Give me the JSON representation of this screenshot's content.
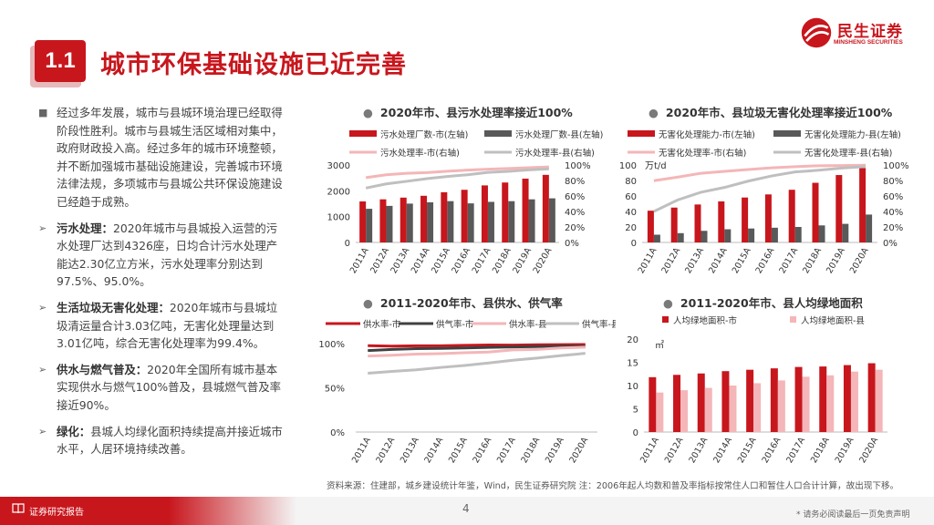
{
  "header": {
    "section_number": "1.1",
    "title": "城市环保基础设施已近完善",
    "logo_cn": "民生证券",
    "logo_en": "MINSHENG SECURITIES"
  },
  "left": {
    "p1": "经过多年发展，城市与县城环境治理已经取得阶段性胜利。城市与县城生活区域相对集中，政府财政投入高。经过多年的城市环境整顿，并不断加强城市基础设施建设，完善城市环境法律法规，多项城市与县城公共环保设施建设已经趋于成熟。",
    "p2_label": "污水处理：",
    "p2": "2020年城市与县城投入运营的污水处理厂达到4326座，日均合计污水处理产能达2.30亿立方米，污水处理率分别达到97.5%、95.0%。",
    "p3_label": "生活垃圾无害化处理：",
    "p3": "2020年城市与县城垃圾清运量合计3.03亿吨，无害化处理量达到3.01亿吨，综合无害化处理率为99.4%。",
    "p4_label": "供水与燃气普及：",
    "p4": "2020年全国所有城市基本实现供水与燃气100%普及，县城燃气普及率接近90%。",
    "p5_label": "绿化：",
    "p5": "县城人均绿化面积持续提高并接近城市水平，人居环境持续改善。"
  },
  "chart_data": [
    {
      "type": "bar",
      "title": "2020年市、县污水处理率接近100%",
      "categories": [
        "2011A",
        "2012A",
        "2013A",
        "2014A",
        "2015A",
        "2016A",
        "2017A",
        "2018A",
        "2019A",
        "2020A"
      ],
      "series": [
        {
          "name": "污水处理厂数-市(左轴)",
          "kind": "bar",
          "axis": "left",
          "color": "#c8161d",
          "values": [
            1588,
            1670,
            1736,
            1807,
            1944,
            2039,
            2209,
            2321,
            2471,
            2618
          ]
        },
        {
          "name": "污水处理厂数-县(左轴)",
          "kind": "bar",
          "axis": "left",
          "color": "#595959",
          "values": [
            1303,
            1416,
            1504,
            1555,
            1599,
            1513,
            1572,
            1598,
            1669,
            1708
          ]
        },
        {
          "name": "污水处理率-市(右轴)",
          "kind": "line",
          "axis": "right",
          "color": "#f4b6b8",
          "values": [
            0.837,
            0.873,
            0.893,
            0.902,
            0.919,
            0.934,
            0.945,
            0.955,
            0.965,
            0.975
          ]
        },
        {
          "name": "污水处理率-县(右轴)",
          "kind": "line",
          "axis": "right",
          "color": "#bfbfbf",
          "values": [
            0.702,
            0.756,
            0.789,
            0.823,
            0.852,
            0.874,
            0.904,
            0.917,
            0.936,
            0.95
          ]
        }
      ],
      "yleft": {
        "min": 0,
        "max": 3000,
        "ticks": [
          "0",
          "1000",
          "2000",
          "3000"
        ]
      },
      "yright": {
        "min": 0,
        "max": 1,
        "ticks": [
          "0%",
          "20%",
          "40%",
          "60%",
          "80%",
          "100%"
        ]
      }
    },
    {
      "type": "bar",
      "title": "2020年市、县垃圾无害化处理率接近100%",
      "categories": [
        "2011A",
        "2012A",
        "2013A",
        "2014A",
        "2015A",
        "2016A",
        "2017A",
        "2018A",
        "2019A",
        "2020A"
      ],
      "unit": "万t/d",
      "series": [
        {
          "name": "无害化处理能力-市(左轴)",
          "kind": "bar",
          "axis": "left",
          "color": "#c8161d",
          "values": [
            41,
            45,
            49,
            53,
            58,
            62,
            68,
            77,
            87,
            96
          ]
        },
        {
          "name": "无害化处理能力-县(左轴)",
          "kind": "bar",
          "axis": "left",
          "color": "#595959",
          "values": [
            10,
            12,
            15,
            17,
            18,
            19,
            20,
            22,
            24,
            36
          ]
        },
        {
          "name": "无害化处理率-市(右轴)",
          "kind": "line",
          "axis": "right",
          "color": "#f4b6b8",
          "values": [
            0.797,
            0.843,
            0.893,
            0.918,
            0.941,
            0.963,
            0.978,
            0.99,
            0.992,
            0.997
          ]
        },
        {
          "name": "无害化处理率-县(右轴)",
          "kind": "line",
          "axis": "right",
          "color": "#bfbfbf",
          "values": [
            0.4,
            0.547,
            0.648,
            0.71,
            0.791,
            0.858,
            0.91,
            0.932,
            0.96,
            0.98
          ]
        }
      ],
      "yleft": {
        "min": 0,
        "max": 100,
        "ticks": [
          "0",
          "20",
          "40",
          "60",
          "80",
          "100"
        ]
      },
      "yright": {
        "min": 0,
        "max": 1,
        "ticks": [
          "0%",
          "20%",
          "40%",
          "60%",
          "80%",
          "100%"
        ]
      }
    },
    {
      "type": "line",
      "title": "2011-2020年市、县供水、供气率",
      "categories": [
        "2011A",
        "2012A",
        "2013A",
        "2014A",
        "2015A",
        "2016A",
        "2017A",
        "2018A",
        "2019A",
        "2020A"
      ],
      "series": [
        {
          "name": "供水率-市",
          "color": "#c8161d",
          "values": [
            0.977,
            0.972,
            0.976,
            0.976,
            0.981,
            0.984,
            0.983,
            0.987,
            0.989,
            0.99
          ]
        },
        {
          "name": "供气率-市",
          "color": "#404040",
          "values": [
            0.922,
            0.934,
            0.943,
            0.946,
            0.951,
            0.957,
            0.962,
            0.967,
            0.971,
            0.97
          ]
        },
        {
          "name": "供水率-县",
          "color": "#f4b6b8",
          "values": [
            0.86,
            0.869,
            0.881,
            0.887,
            0.897,
            0.905,
            0.929,
            0.934,
            0.951,
            0.96
          ]
        },
        {
          "name": "供气率-县",
          "color": "#bfbfbf",
          "values": [
            0.665,
            0.685,
            0.704,
            0.73,
            0.753,
            0.781,
            0.812,
            0.836,
            0.865,
            0.89
          ]
        }
      ],
      "yleft": {
        "min": 0,
        "max": 1,
        "ticks": [
          "0%",
          "50%",
          "100%"
        ]
      }
    },
    {
      "type": "bar",
      "title": "2011-2020年市、县人均绿地面积",
      "categories": [
        "2011A",
        "2012A",
        "2013A",
        "2014A",
        "2015A",
        "2016A",
        "2017A",
        "2018A",
        "2019A",
        "2020A"
      ],
      "unit": "㎡",
      "series": [
        {
          "name": "人均绿地面积-市",
          "color": "#c8161d",
          "values": [
            11.8,
            12.3,
            12.6,
            13.1,
            13.4,
            13.7,
            14.0,
            14.1,
            14.4,
            14.8
          ]
        },
        {
          "name": "人均绿地面积-县",
          "color": "#f4b6b8",
          "values": [
            8.5,
            9.0,
            9.5,
            10.0,
            10.5,
            11.1,
            11.9,
            12.2,
            13.0,
            13.4
          ]
        }
      ],
      "yleft": {
        "min": 0,
        "max": 20,
        "ticks": [
          "0",
          "5",
          "10",
          "15",
          "20"
        ]
      }
    }
  ],
  "source": "资料来源：住建部，城乡建设统计年鉴，Wind，民生证券研究院   注：2006年起人均数和普及率指标按常住人口和暂住人口合计计算，故出现下移。",
  "footer": {
    "label": "证券研究报告",
    "page": "4",
    "disclaimer": "* 请务必阅读最后一页免责声明"
  }
}
